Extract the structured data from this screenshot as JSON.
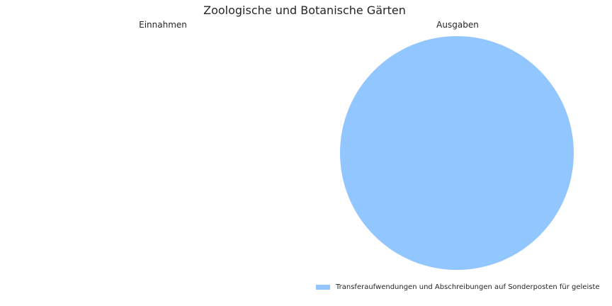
{
  "chart_data": [
    {
      "type": "pie",
      "title": "Einnahmen",
      "slices": []
    },
    {
      "type": "pie",
      "title": "Ausgaben",
      "slices": [
        {
          "label": "Transferaufwendungen und Abschreibungen auf Sonderposten für geleiste",
          "value": 100,
          "color": "#92c6ff"
        }
      ]
    }
  ],
  "figure_title": "Zoologische und Botanische Gärten",
  "legend": {
    "placement": "bottom-right",
    "items": [
      {
        "label": "Transferaufwendungen und Abschreibungen auf Sonderposten für geleiste",
        "color": "#92c6ff"
      }
    ]
  }
}
